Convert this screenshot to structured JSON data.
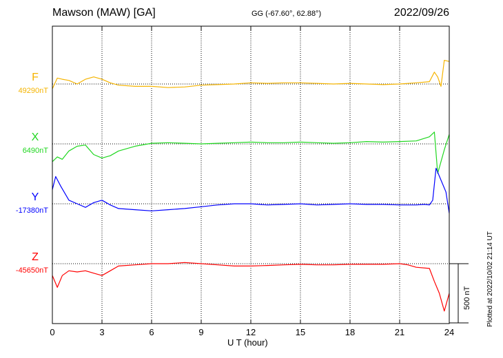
{
  "header": {
    "station": "Mawson (MAW)  [GA]",
    "coords": "GG (-67.60°,  62.88°)",
    "date": "2022/09/26"
  },
  "footer": {
    "xlabel": "U T (hour)",
    "plotted": "Plotted at 2022/10/02 21:14 UT",
    "scale_label": "500 nT"
  },
  "chart_data": {
    "type": "line",
    "title": "Mawson (MAW)  [GA]",
    "xlabel": "U T (hour)",
    "xlim": [
      0,
      24
    ],
    "xticks": [
      0,
      3,
      6,
      9,
      12,
      15,
      18,
      21,
      24
    ],
    "grid": true,
    "scale_bar_nT": 500,
    "series": [
      {
        "name": "F",
        "baseline_label": "49290nT",
        "baseline_nT": 49290,
        "color": "#f5b400",
        "x": [
          0,
          0.3,
          0.6,
          1.0,
          1.5,
          2.0,
          2.5,
          3.0,
          3.5,
          4.0,
          5.0,
          6.0,
          7.0,
          8.0,
          9.0,
          10.0,
          11.0,
          12.0,
          13.0,
          14.0,
          15.0,
          16.0,
          17.0,
          18.0,
          19.0,
          20.0,
          21.0,
          22.0,
          22.8,
          23.1,
          23.3,
          23.5,
          23.7,
          24.0
        ],
        "offset_nT": [
          -40,
          50,
          40,
          30,
          0,
          40,
          60,
          40,
          10,
          -10,
          -20,
          -20,
          -30,
          -25,
          -10,
          -5,
          0,
          10,
          5,
          10,
          10,
          5,
          0,
          5,
          0,
          -5,
          0,
          10,
          20,
          100,
          60,
          -20,
          200,
          190
        ]
      },
      {
        "name": "X",
        "baseline_label": "6490nT",
        "baseline_nT": 6490,
        "color": "#1fd71f",
        "x": [
          0,
          0.3,
          0.6,
          1.0,
          1.5,
          2.0,
          2.5,
          3.0,
          3.5,
          4.0,
          5.0,
          6.0,
          7.0,
          8.0,
          9.0,
          10.0,
          11.0,
          12.0,
          13.0,
          14.0,
          15.0,
          16.0,
          17.0,
          18.0,
          19.0,
          20.0,
          21.0,
          22.0,
          22.8,
          23.1,
          23.3,
          23.5,
          23.7,
          24.0
        ],
        "offset_nT": [
          -150,
          -110,
          -130,
          -60,
          -20,
          -10,
          -90,
          -120,
          -100,
          -60,
          -20,
          5,
          10,
          5,
          0,
          5,
          10,
          15,
          10,
          10,
          15,
          10,
          5,
          10,
          20,
          15,
          20,
          25,
          60,
          100,
          -250,
          -150,
          -50,
          80
        ]
      },
      {
        "name": "Y",
        "baseline_label": "-17380nT",
        "baseline_nT": -17380,
        "color": "#0000ff",
        "x": [
          0,
          0.2,
          0.5,
          1.0,
          1.5,
          2.0,
          2.5,
          3.0,
          3.5,
          4.0,
          5.0,
          6.0,
          7.0,
          8.0,
          9.0,
          10.0,
          11.0,
          12.0,
          13.0,
          14.0,
          15.0,
          16.0,
          17.0,
          18.0,
          19.0,
          20.0,
          21.0,
          22.0,
          22.5,
          22.8,
          23.0,
          23.2,
          23.5,
          23.8,
          24.0
        ],
        "offset_nT": [
          120,
          230,
          150,
          30,
          0,
          -30,
          10,
          30,
          -10,
          -40,
          -50,
          -60,
          -50,
          -40,
          -25,
          -10,
          0,
          0,
          -10,
          -5,
          0,
          -10,
          -5,
          0,
          -5,
          -5,
          -10,
          -10,
          -5,
          -10,
          30,
          300,
          200,
          100,
          -80
        ]
      },
      {
        "name": "Z",
        "baseline_label": "-45650nT",
        "baseline_nT": -45650,
        "color": "#ff0000",
        "x": [
          0,
          0.3,
          0.6,
          1.0,
          1.5,
          2.0,
          2.5,
          3.0,
          3.5,
          4.0,
          5.0,
          6.0,
          7.0,
          8.0,
          9.0,
          10.0,
          11.0,
          12.0,
          13.0,
          14.0,
          15.0,
          16.0,
          17.0,
          18.0,
          19.0,
          20.0,
          21.0,
          21.5,
          22.0,
          22.8,
          23.1,
          23.4,
          23.7,
          24.0
        ],
        "offset_nT": [
          -100,
          -200,
          -100,
          -60,
          -70,
          -60,
          -80,
          -100,
          -60,
          -20,
          -10,
          0,
          0,
          10,
          0,
          -10,
          -20,
          -20,
          -15,
          -10,
          -5,
          -10,
          -10,
          -5,
          -5,
          -5,
          0,
          -10,
          -30,
          -40,
          -150,
          -250,
          -400,
          -250
        ]
      }
    ]
  }
}
